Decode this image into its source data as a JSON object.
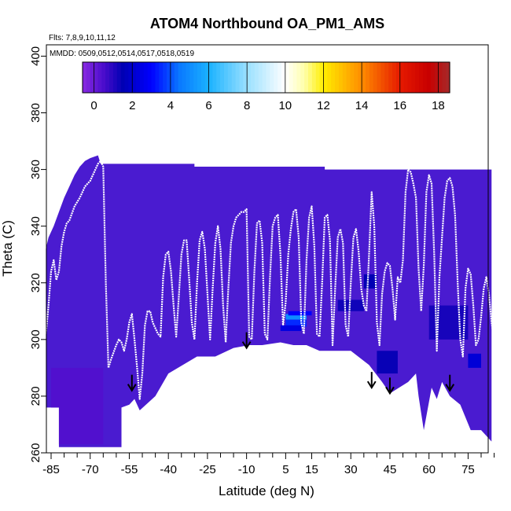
{
  "chart_data": {
    "type": "heatmap",
    "title": "ATOM4 Northbound OA_PM1_AMS",
    "flights_label": "Flts: 7,8,9,10,11,12",
    "dates_label": "MMDD: 0509,0512,0514,0517,0518,0519",
    "xlabel": "Latitude (deg N)",
    "ylabel": "Theta (C)",
    "xlim": [
      -88,
      85
    ],
    "ylim": [
      260,
      404
    ],
    "x_ticks": [
      -85,
      -70,
      -55,
      -40,
      -25,
      -10,
      5,
      15,
      30,
      45,
      60,
      75
    ],
    "x_minor_ticks": [
      -80,
      -75,
      -65,
      -60,
      -50,
      -45,
      -35,
      -30,
      -20,
      -15,
      -5,
      0,
      10,
      20,
      25,
      35,
      40,
      50,
      55,
      65,
      70,
      80,
      85
    ],
    "y_ticks": [
      260,
      280,
      300,
      320,
      340,
      360,
      380,
      400
    ],
    "colorbar": {
      "range": [
        -0.6,
        18.6
      ],
      "ticks": [
        0,
        2,
        4,
        6,
        8,
        10,
        12,
        14,
        16,
        18
      ],
      "stops": [
        {
          "v": -0.6,
          "c": "#8a2be2"
        },
        {
          "v": 0.5,
          "c": "#4b0dcc"
        },
        {
          "v": 1.5,
          "c": "#0000b4"
        },
        {
          "v": 3.0,
          "c": "#0000ff"
        },
        {
          "v": 4.5,
          "c": "#0a7aff"
        },
        {
          "v": 6.0,
          "c": "#1ab2ff"
        },
        {
          "v": 8.0,
          "c": "#9ae0ff"
        },
        {
          "v": 10.0,
          "c": "#ffffff"
        },
        {
          "v": 11.0,
          "c": "#ffffaa"
        },
        {
          "v": 12.0,
          "c": "#ffee00"
        },
        {
          "v": 14.0,
          "c": "#ff8c00"
        },
        {
          "v": 16.0,
          "c": "#e61a00"
        },
        {
          "v": 17.5,
          "c": "#c80000"
        },
        {
          "v": 18.6,
          "c": "#a52a2a"
        }
      ]
    },
    "field_base_color": "#4a1bd0",
    "field_top": [
      [
        -87,
        332
      ],
      [
        -86,
        336
      ],
      [
        -84,
        340
      ],
      [
        -82,
        345
      ],
      [
        -80,
        350
      ],
      [
        -78,
        354
      ],
      [
        -76,
        358
      ],
      [
        -74,
        361
      ],
      [
        -72,
        363
      ],
      [
        -70,
        364
      ],
      [
        -67,
        365
      ],
      [
        -66,
        362
      ],
      [
        -30,
        362
      ],
      [
        -30,
        361
      ],
      [
        5,
        361
      ],
      [
        20,
        361
      ],
      [
        20,
        360
      ],
      [
        84,
        360
      ]
    ],
    "field_bottom": [
      [
        84,
        264
      ],
      [
        80,
        268
      ],
      [
        76,
        268
      ],
      [
        72,
        277
      ],
      [
        68,
        280
      ],
      [
        65,
        285
      ],
      [
        63,
        279
      ],
      [
        61,
        283
      ],
      [
        58,
        268
      ],
      [
        56,
        280
      ],
      [
        55,
        288
      ],
      [
        52,
        285
      ],
      [
        45,
        281
      ],
      [
        42,
        285
      ],
      [
        37,
        291
      ],
      [
        30,
        296
      ],
      [
        24,
        296
      ],
      [
        18,
        296
      ],
      [
        13,
        298
      ],
      [
        8,
        298
      ],
      [
        3,
        299
      ],
      [
        -4,
        298
      ],
      [
        -9,
        298
      ],
      [
        -15,
        297
      ],
      [
        -22,
        294
      ],
      [
        -29,
        294
      ],
      [
        -40,
        288
      ],
      [
        -45,
        280
      ],
      [
        -51,
        275
      ],
      [
        -53,
        279
      ],
      [
        -55,
        277
      ],
      [
        -58,
        276
      ],
      [
        -58,
        262
      ],
      [
        -82,
        262
      ],
      [
        -82,
        276
      ],
      [
        -87,
        276
      ]
    ],
    "enhancements": [
      {
        "lat": [
          5,
          13
        ],
        "theta": [
          307,
          309
        ],
        "value": 5
      },
      {
        "lat": [
          5,
          13
        ],
        "theta": [
          304.5,
          307
        ],
        "value": 3.5
      },
      {
        "lat": [
          6,
          15
        ],
        "theta": [
          308.5,
          310
        ],
        "value": 3
      },
      {
        "lat": [
          3,
          11
        ],
        "theta": [
          303,
          305
        ],
        "value": 2.4
      },
      {
        "lat": [
          25,
          35
        ],
        "theta": [
          310,
          314
        ],
        "value": 1.3
      },
      {
        "lat": [
          35,
          40
        ],
        "theta": [
          318,
          323
        ],
        "value": 1.5
      },
      {
        "lat": [
          40,
          48
        ],
        "theta": [
          288,
          296
        ],
        "value": 1.4
      },
      {
        "lat": [
          75,
          80
        ],
        "theta": [
          290,
          295
        ],
        "value": 2.2
      },
      {
        "lat": [
          60,
          75
        ],
        "theta": [
          300,
          312
        ],
        "value": 1.2
      },
      {
        "lat": [
          -85,
          -65
        ],
        "theta": [
          263,
          290
        ],
        "value": 0.4
      }
    ],
    "flight_track": {
      "color": "#ffffff",
      "points": [
        [
          -87,
          302
        ],
        [
          -86,
          312
        ],
        [
          -85,
          324
        ],
        [
          -84,
          328
        ],
        [
          -83,
          321
        ],
        [
          -82,
          324
        ],
        [
          -81,
          333
        ],
        [
          -80,
          338
        ],
        [
          -79,
          341
        ],
        [
          -78,
          342
        ],
        [
          -76,
          347
        ],
        [
          -74,
          350
        ],
        [
          -72,
          354
        ],
        [
          -70,
          356
        ],
        [
          -69,
          358
        ],
        [
          -68,
          360
        ],
        [
          -67,
          362
        ],
        [
          -66,
          363
        ],
        [
          -65,
          361
        ],
        [
          -64,
          320
        ],
        [
          -63,
          290
        ],
        [
          -62,
          293
        ],
        [
          -60,
          298
        ],
        [
          -59,
          300
        ],
        [
          -58,
          299
        ],
        [
          -57,
          296
        ],
        [
          -56,
          300
        ],
        [
          -55,
          306
        ],
        [
          -54,
          309
        ],
        [
          -53,
          300
        ],
        [
          -52,
          290
        ],
        [
          -51,
          279
        ],
        [
          -50,
          288
        ],
        [
          -49,
          305
        ],
        [
          -48,
          310
        ],
        [
          -47,
          310
        ],
        [
          -46,
          306
        ],
        [
          -45,
          304
        ],
        [
          -44,
          302
        ],
        [
          -43,
          301
        ],
        [
          -42,
          322
        ],
        [
          -41,
          330
        ],
        [
          -40,
          331
        ],
        [
          -39,
          324
        ],
        [
          -38,
          312
        ],
        [
          -37,
          301
        ],
        [
          -36,
          315
        ],
        [
          -35,
          330
        ],
        [
          -34,
          335
        ],
        [
          -33,
          335
        ],
        [
          -32,
          321
        ],
        [
          -31,
          306
        ],
        [
          -30,
          300
        ],
        [
          -29,
          320
        ],
        [
          -28,
          335
        ],
        [
          -27,
          338
        ],
        [
          -26,
          332
        ],
        [
          -25,
          316
        ],
        [
          -24,
          300
        ],
        [
          -23,
          318
        ],
        [
          -22,
          334
        ],
        [
          -21,
          340
        ],
        [
          -20,
          332
        ],
        [
          -19,
          312
        ],
        [
          -18,
          299
        ],
        [
          -17,
          318
        ],
        [
          -16,
          334
        ],
        [
          -15,
          340
        ],
        [
          -14,
          343
        ],
        [
          -13,
          344
        ],
        [
          -12,
          345
        ],
        [
          -11,
          345
        ],
        [
          -10,
          346
        ],
        [
          -9,
          301
        ],
        [
          -8,
          300
        ],
        [
          -7,
          324
        ],
        [
          -6,
          341
        ],
        [
          -5,
          342
        ],
        [
          -4,
          334
        ],
        [
          -3,
          302
        ],
        [
          -2,
          300
        ],
        [
          -1,
          322
        ],
        [
          0,
          340
        ],
        [
          1,
          343
        ],
        [
          2,
          344
        ],
        [
          3,
          330
        ],
        [
          4,
          305
        ],
        [
          5,
          313
        ],
        [
          6,
          330
        ],
        [
          7,
          339
        ],
        [
          8,
          345
        ],
        [
          9,
          346
        ],
        [
          10,
          336
        ],
        [
          11,
          306
        ],
        [
          12,
          302
        ],
        [
          13,
          328
        ],
        [
          14,
          343
        ],
        [
          15,
          347
        ],
        [
          16,
          333
        ],
        [
          17,
          302
        ],
        [
          18,
          301
        ],
        [
          19,
          320
        ],
        [
          20,
          343
        ],
        [
          21,
          344
        ],
        [
          22,
          335
        ],
        [
          23,
          298
        ],
        [
          24,
          318
        ],
        [
          25,
          336
        ],
        [
          26,
          339
        ],
        [
          27,
          334
        ],
        [
          28,
          305
        ],
        [
          29,
          301
        ],
        [
          30,
          320
        ],
        [
          31,
          336
        ],
        [
          32,
          339
        ],
        [
          33,
          331
        ],
        [
          34,
          318
        ],
        [
          35,
          312
        ],
        [
          36,
          310
        ],
        [
          37,
          330
        ],
        [
          38,
          352
        ],
        [
          39,
          340
        ],
        [
          40,
          306
        ],
        [
          41,
          298
        ],
        [
          42,
          316
        ],
        [
          43,
          324
        ],
        [
          44,
          327
        ],
        [
          45,
          326
        ],
        [
          46,
          318
        ],
        [
          47,
          307
        ],
        [
          48,
          322
        ],
        [
          49,
          320
        ],
        [
          50,
          328
        ],
        [
          51,
          352
        ],
        [
          52,
          360
        ],
        [
          53,
          359
        ],
        [
          54,
          355
        ],
        [
          55,
          350
        ],
        [
          56,
          325
        ],
        [
          57,
          310
        ],
        [
          58,
          326
        ],
        [
          59,
          352
        ],
        [
          60,
          358
        ],
        [
          61,
          355
        ],
        [
          62,
          330
        ],
        [
          63,
          296
        ],
        [
          64,
          322
        ],
        [
          65,
          336
        ],
        [
          66,
          350
        ],
        [
          67,
          356
        ],
        [
          68,
          357
        ],
        [
          69,
          354
        ],
        [
          70,
          344
        ],
        [
          71,
          320
        ],
        [
          72,
          300
        ],
        [
          73,
          294
        ],
        [
          74,
          318
        ],
        [
          75,
          325
        ],
        [
          76,
          323
        ],
        [
          77,
          312
        ],
        [
          78,
          298
        ],
        [
          79,
          300
        ],
        [
          80,
          308
        ],
        [
          81,
          318
        ],
        [
          82,
          322
        ],
        [
          83,
          316
        ],
        [
          84,
          306
        ],
        [
          85,
          300
        ]
      ]
    },
    "arrows": [
      {
        "lat": -54,
        "theta": 282
      },
      {
        "lat": -10,
        "theta": 297
      },
      {
        "lat": 38,
        "theta": 283
      },
      {
        "lat": 45,
        "theta": 281
      },
      {
        "lat": 68,
        "theta": 282
      }
    ]
  }
}
